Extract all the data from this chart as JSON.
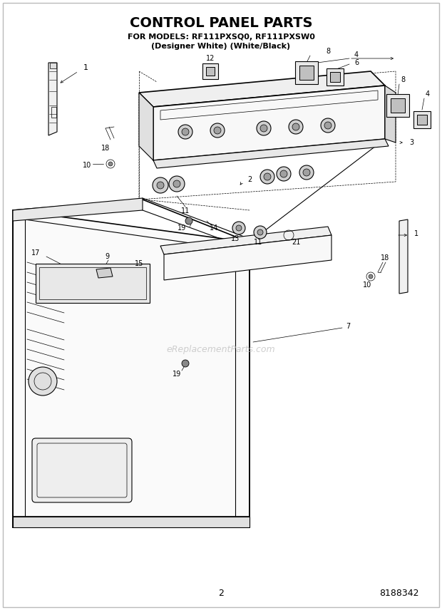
{
  "title_line1": "CONTROL PANEL PARTS",
  "title_line2": "FOR MODELS: RF111PXSQ0, RF111PXSW0",
  "title_line3": "(Designer White) (White/Black)",
  "page_number": "2",
  "part_number": "8188342",
  "background_color": "#ffffff",
  "line_color": "#1a1a1a",
  "title_color": "#000000",
  "watermark_text": "eReplacementParts.com",
  "watermark_color": "#bbbbbb"
}
